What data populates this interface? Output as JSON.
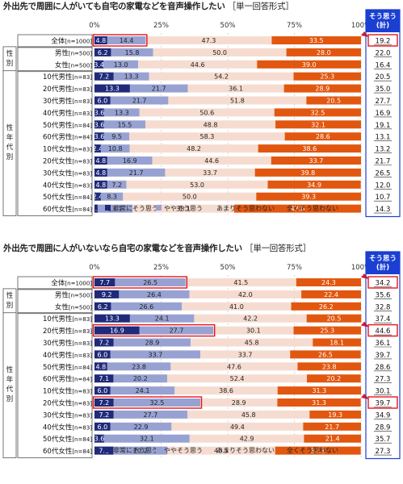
{
  "labels": {
    "group_gender": "性別",
    "group_age_gender": "性年代別",
    "sum_header": "そう思う(計)",
    "ticks": [
      "0%",
      "25%",
      "50%",
      "75%",
      "100%"
    ]
  },
  "colors": [
    "#1f2a7a",
    "#98a2d2",
    "#f6dcd0",
    "#e2570f"
  ],
  "chart_data": [
    {
      "type": "bar",
      "stacked": true,
      "orientation": "horizontal",
      "title": "外出先で周囲に人がいても自宅の家電などを音声操作したい",
      "format_note": "［単一回答形式］",
      "xlim": [
        0,
        100
      ],
      "x_ticks": [
        "0%",
        "25%",
        "50%",
        "75%",
        "100%"
      ],
      "legend": [
        "非常にそう思う",
        "ややそう思う",
        "あまりそう思わない",
        "全くそう思わない"
      ],
      "legend_position": "bottom",
      "sum_header": "そう思う(計)",
      "categories": [
        "全体[n=1000]",
        "男性[n=500]",
        "女性[n=500]",
        "10代男性[n=83]",
        "20代男性[n=83]",
        "30代男性[n=83]",
        "40代男性[n=83]",
        "50代男性[n=84]",
        "60代男性[n=84]",
        "10代女性[n=83]",
        "20代女性[n=83]",
        "30代女性[n=83]",
        "40代女性[n=83]",
        "50代女性[n=84]",
        "60代女性[n=84]"
      ],
      "series": [
        {
          "name": "非常にそう思う",
          "values": [
            4.8,
            6.2,
            3.4,
            7.2,
            13.3,
            6.0,
            3.6,
            3.6,
            3.6,
            2.4,
            4.8,
            4.8,
            4.8,
            2.4,
            1.2
          ]
        },
        {
          "name": "ややそう思う",
          "values": [
            14.4,
            15.8,
            13.0,
            13.3,
            21.7,
            21.7,
            13.3,
            15.5,
            9.5,
            10.8,
            16.9,
            21.7,
            7.2,
            8.3,
            13.1
          ]
        },
        {
          "name": "あまりそう思わない",
          "values": [
            47.3,
            50.0,
            44.6,
            54.2,
            36.1,
            51.8,
            50.6,
            48.8,
            58.3,
            48.2,
            44.6,
            33.7,
            53.0,
            50.0,
            38.1
          ]
        },
        {
          "name": "全くそう思わない",
          "values": [
            33.5,
            28.0,
            39.0,
            25.3,
            28.9,
            20.5,
            32.5,
            32.1,
            28.6,
            38.6,
            33.7,
            39.8,
            34.9,
            39.3,
            47.6
          ]
        }
      ],
      "sum_values": [
        "19.2",
        "22.0",
        "16.4",
        "20.5",
        "35.0",
        "27.7",
        "16.9",
        "19.1",
        "13.1",
        "13.2",
        "21.7",
        "26.5",
        "12.0",
        "10.7",
        "14.3"
      ],
      "highlight_rows": [
        0
      ],
      "highlight_sums": [
        0
      ]
    },
    {
      "type": "bar",
      "stacked": true,
      "orientation": "horizontal",
      "title": "外出先で周囲に人がいないなら自宅の家電などを音声操作したい",
      "format_note": "［単一回答形式］",
      "xlim": [
        0,
        100
      ],
      "x_ticks": [
        "0%",
        "25%",
        "50%",
        "75%",
        "100%"
      ],
      "legend": [
        "非常にそう思う",
        "ややそう思う",
        "あまりそう思わない",
        "全くそう思わない"
      ],
      "legend_position": "bottom",
      "sum_header": "そう思う(計)",
      "categories": [
        "全体[n=1000]",
        "男性[n=500]",
        "女性[n=500]",
        "10代男性[n=83]",
        "20代男性[n=83]",
        "30代男性[n=83]",
        "40代男性[n=83]",
        "50代男性[n=84]",
        "60代男性[n=84]",
        "10代女性[n=83]",
        "20代女性[n=83]",
        "30代女性[n=83]",
        "40代女性[n=83]",
        "50代女性[n=84]",
        "60代女性[n=84]"
      ],
      "series": [
        {
          "name": "非常にそう思う",
          "values": [
            7.7,
            9.2,
            6.2,
            13.3,
            16.9,
            7.2,
            6.0,
            4.8,
            7.1,
            6.0,
            7.2,
            7.2,
            6.0,
            3.6,
            7.1
          ]
        },
        {
          "name": "ややそう思う",
          "values": [
            26.5,
            26.4,
            26.6,
            24.1,
            27.7,
            28.9,
            33.7,
            23.8,
            20.2,
            24.1,
            32.5,
            27.7,
            22.9,
            32.1,
            20.2
          ]
        },
        {
          "name": "あまりそう思わない",
          "values": [
            41.5,
            42.0,
            41.0,
            42.2,
            30.1,
            45.8,
            33.7,
            47.6,
            52.4,
            38.6,
            28.9,
            45.8,
            49.4,
            42.9,
            40.5
          ]
        },
        {
          "name": "全くそう思わない",
          "values": [
            24.3,
            22.4,
            26.2,
            20.5,
            25.3,
            18.1,
            26.5,
            23.8,
            20.2,
            31.3,
            31.3,
            19.3,
            21.7,
            21.4,
            32.1
          ]
        }
      ],
      "sum_values": [
        "34.2",
        "35.6",
        "32.8",
        "37.4",
        "44.6",
        "36.1",
        "39.7",
        "28.6",
        "27.3",
        "30.1",
        "39.7",
        "34.9",
        "28.9",
        "35.7",
        "27.3"
      ],
      "highlight_rows": [
        0,
        4,
        10
      ],
      "highlight_sums": [
        0,
        4,
        10
      ]
    }
  ]
}
